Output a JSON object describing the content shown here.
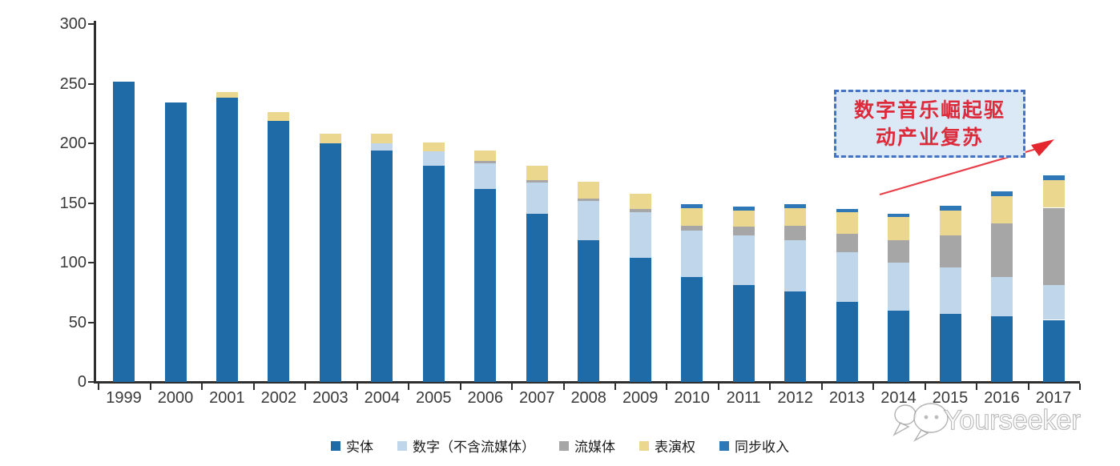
{
  "chart_data": {
    "type": "bar",
    "stacked": true,
    "grid": false,
    "legend_position": "bottom",
    "ylim": [
      0,
      300
    ],
    "y_ticks": [
      0,
      50,
      100,
      150,
      200,
      250,
      300
    ],
    "x": [
      "1999",
      "2000",
      "2001",
      "2002",
      "2003",
      "2004",
      "2005",
      "2006",
      "2007",
      "2008",
      "2009",
      "2010",
      "2011",
      "2012",
      "2013",
      "2014",
      "2015",
      "2016",
      "2017"
    ],
    "series": [
      {
        "name": "实体",
        "color": "#1F6BA7",
        "values": [
          252,
          234,
          238,
          219,
          200,
          194,
          181,
          162,
          141,
          119,
          104,
          88,
          81,
          76,
          67,
          60,
          57,
          55,
          52
        ]
      },
      {
        "name": "数字（不含流媒体）",
        "color": "#BFD6EB",
        "values": [
          0,
          0,
          0,
          0,
          0,
          6,
          12,
          21,
          26,
          33,
          38,
          39,
          42,
          43,
          42,
          40,
          39,
          33,
          29
        ]
      },
      {
        "name": "流媒体",
        "color": "#A6A6A6",
        "values": [
          0,
          0,
          0,
          0,
          0,
          0,
          0,
          2,
          2,
          2,
          3,
          4,
          7,
          12,
          15,
          19,
          27,
          45,
          65
        ]
      },
      {
        "name": "表演权",
        "color": "#EBD78E",
        "values": [
          0,
          0,
          5,
          7,
          8,
          8,
          8,
          9,
          12,
          14,
          13,
          15,
          14,
          15,
          18,
          19,
          21,
          23,
          23
        ]
      },
      {
        "name": "同步收入",
        "color": "#2E78B8",
        "values": [
          0,
          0,
          0,
          0,
          0,
          0,
          0,
          0,
          0,
          0,
          0,
          3,
          3,
          3,
          3,
          3,
          4,
          4,
          4
        ]
      }
    ]
  },
  "annotation": {
    "line1": "数字音乐崛起驱",
    "line2": "动产业复苏",
    "arrow_color": "#E8404A",
    "box_fill": "#DBE8F6",
    "box_border": "#4472C4",
    "text_color": "#DD2B3C"
  },
  "watermark": {
    "text": "Yourseeker"
  }
}
